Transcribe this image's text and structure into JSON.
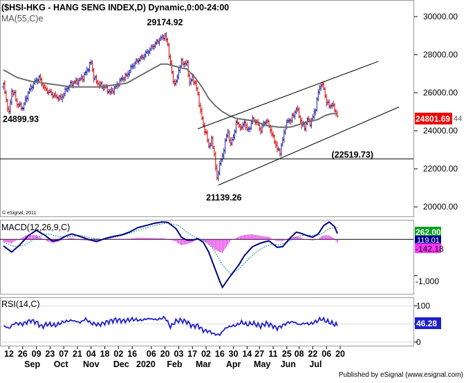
{
  "chart_data": [
    {
      "type": "candlestick",
      "title": "($HSI-HKG - HANG SENG INDEX,D) Dynamic,0:00-24:00",
      "indicator_label": "MA(55,C)e",
      "copyright": "© eSignal, 2011",
      "ylim": [
        19500,
        30800
      ],
      "y_ticks": [
        "30000.00",
        "28000.00",
        "26000.00",
        "24000.00",
        "22000.00",
        "20000.00"
      ],
      "y_tick_values": [
        30000,
        28000,
        26000,
        24000,
        22000,
        20000
      ],
      "last_price_label": "24801.69",
      "last_price_suffix": "44",
      "last_price_value": 24801.69,
      "annotations": [
        {
          "text": "29174.92",
          "value": 29174.92,
          "day": 118
        },
        {
          "text": "24899.93",
          "value": 24899.93,
          "day": 1
        },
        {
          "text": "21139.26",
          "value": 21139.26,
          "day": 156
        },
        {
          "text": "(22519.73)",
          "value": 22519.73,
          "day": 255
        }
      ],
      "horizontal_line": 22519.73,
      "channel_upper": {
        "start": [
          142,
          24100
        ],
        "end": [
          274,
          27650
        ]
      },
      "channel_lower": {
        "start": [
          157,
          21139
        ],
        "end": [
          289,
          25250
        ]
      },
      "price_anchors": [
        [
          0,
          26400
        ],
        [
          2,
          25600
        ],
        [
          4,
          24900
        ],
        [
          6,
          26100
        ],
        [
          8,
          25900
        ],
        [
          10,
          25400
        ],
        [
          14,
          25200
        ],
        [
          18,
          26000
        ],
        [
          22,
          26500
        ],
        [
          26,
          26800
        ],
        [
          30,
          26200
        ],
        [
          34,
          26000
        ],
        [
          38,
          25800
        ],
        [
          42,
          25700
        ],
        [
          46,
          26200
        ],
        [
          50,
          26500
        ],
        [
          54,
          26600
        ],
        [
          58,
          26800
        ],
        [
          62,
          27300
        ],
        [
          64,
          27600
        ],
        [
          66,
          26800
        ],
        [
          70,
          26400
        ],
        [
          74,
          26300
        ],
        [
          78,
          26000
        ],
        [
          82,
          26300
        ],
        [
          86,
          26700
        ],
        [
          90,
          26900
        ],
        [
          94,
          27400
        ],
        [
          98,
          27700
        ],
        [
          102,
          27900
        ],
        [
          106,
          28200
        ],
        [
          110,
          28500
        ],
        [
          114,
          28800
        ],
        [
          118,
          29000
        ],
        [
          120,
          28500
        ],
        [
          122,
          27500
        ],
        [
          124,
          26600
        ],
        [
          126,
          26500
        ],
        [
          128,
          27200
        ],
        [
          130,
          27600
        ],
        [
          134,
          27500
        ],
        [
          136,
          26500
        ],
        [
          138,
          26800
        ],
        [
          140,
          26500
        ],
        [
          142,
          25900
        ],
        [
          144,
          25000
        ],
        [
          146,
          24300
        ],
        [
          148,
          23800
        ],
        [
          150,
          23200
        ],
        [
          152,
          23500
        ],
        [
          154,
          22800
        ],
        [
          156,
          21400
        ],
        [
          158,
          22300
        ],
        [
          160,
          22600
        ],
        [
          162,
          23500
        ],
        [
          164,
          23900
        ],
        [
          166,
          23300
        ],
        [
          168,
          23700
        ],
        [
          170,
          24400
        ],
        [
          172,
          24300
        ],
        [
          174,
          24100
        ],
        [
          176,
          24500
        ],
        [
          178,
          24000
        ],
        [
          180,
          24200
        ],
        [
          182,
          24600
        ],
        [
          184,
          24500
        ],
        [
          186,
          24300
        ],
        [
          188,
          24000
        ],
        [
          190,
          24400
        ],
        [
          192,
          24500
        ],
        [
          194,
          24300
        ],
        [
          196,
          23800
        ],
        [
          198,
          23500
        ],
        [
          200,
          23000
        ],
        [
          202,
          22900
        ],
        [
          204,
          23500
        ],
        [
          206,
          24300
        ],
        [
          208,
          24500
        ],
        [
          210,
          24600
        ],
        [
          212,
          24800
        ],
        [
          214,
          25200
        ],
        [
          216,
          24800
        ],
        [
          218,
          24300
        ],
        [
          220,
          24200
        ],
        [
          222,
          24600
        ],
        [
          224,
          24400
        ],
        [
          226,
          24700
        ],
        [
          228,
          25200
        ],
        [
          230,
          26000
        ],
        [
          232,
          26500
        ],
        [
          234,
          26200
        ],
        [
          236,
          25500
        ],
        [
          238,
          25300
        ],
        [
          240,
          25400
        ],
        [
          242,
          25100
        ],
        [
          244,
          24800
        ]
      ],
      "ma_anchors": [
        [
          0,
          27200
        ],
        [
          10,
          26800
        ],
        [
          20,
          26600
        ],
        [
          30,
          26500
        ],
        [
          40,
          26400
        ],
        [
          50,
          26300
        ],
        [
          60,
          26300
        ],
        [
          70,
          26300
        ],
        [
          80,
          26400
        ],
        [
          90,
          26500
        ],
        [
          100,
          26900
        ],
        [
          110,
          27300
        ],
        [
          115,
          27500
        ],
        [
          120,
          27500
        ],
        [
          125,
          27400
        ],
        [
          130,
          27300
        ],
        [
          134,
          27250
        ],
        [
          140,
          26800
        ],
        [
          145,
          26300
        ],
        [
          150,
          25700
        ],
        [
          155,
          25300
        ],
        [
          160,
          25000
        ],
        [
          165,
          24800
        ],
        [
          170,
          24650
        ],
        [
          175,
          24600
        ],
        [
          180,
          24550
        ],
        [
          185,
          24500
        ],
        [
          190,
          24300
        ],
        [
          195,
          24250
        ],
        [
          200,
          24200
        ],
        [
          205,
          24180
        ],
        [
          210,
          24200
        ],
        [
          215,
          24300
        ],
        [
          220,
          24450
        ],
        [
          225,
          24500
        ],
        [
          230,
          24600
        ],
        [
          235,
          24800
        ],
        [
          240,
          24900
        ],
        [
          244,
          24900
        ]
      ]
    },
    {
      "type": "line",
      "title": "MACD(12,26,9,C)",
      "ylim": [
        -1500,
        500
      ],
      "y_ticks": [
        "-1,000"
      ],
      "y_tick_values": [
        -1000
      ],
      "zero_label_values": [
        262.001,
        119.01
      ],
      "zero_labels": [
        "262.001",
        "119.01"
      ],
      "hist_label": "-142.18",
      "series": [
        {
          "name": "MACD",
          "anchors": [
            [
              0,
              -180
            ],
            [
              6,
              -350
            ],
            [
              12,
              -150
            ],
            [
              18,
              100
            ],
            [
              24,
              250
            ],
            [
              30,
              120
            ],
            [
              36,
              -50
            ],
            [
              40,
              -20
            ],
            [
              46,
              100
            ],
            [
              50,
              150
            ],
            [
              56,
              80
            ],
            [
              62,
              0
            ],
            [
              68,
              -60
            ],
            [
              74,
              20
            ],
            [
              80,
              80
            ],
            [
              86,
              120
            ],
            [
              92,
              200
            ],
            [
              98,
              320
            ],
            [
              104,
              380
            ],
            [
              110,
              440
            ],
            [
              116,
              480
            ],
            [
              120,
              470
            ],
            [
              126,
              300
            ],
            [
              130,
              60
            ],
            [
              134,
              -20
            ],
            [
              138,
              -20
            ],
            [
              142,
              20
            ],
            [
              146,
              -80
            ],
            [
              150,
              -350
            ],
            [
              154,
              -750
            ],
            [
              158,
              -1150
            ],
            [
              160,
              -1320
            ],
            [
              166,
              -1000
            ],
            [
              172,
              -700
            ],
            [
              176,
              -450
            ],
            [
              182,
              -200
            ],
            [
              188,
              -100
            ],
            [
              194,
              -40
            ],
            [
              200,
              -220
            ],
            [
              204,
              -200
            ],
            [
              210,
              60
            ],
            [
              214,
              200
            ],
            [
              218,
              160
            ],
            [
              222,
              100
            ],
            [
              226,
              60
            ],
            [
              230,
              150
            ],
            [
              234,
              380
            ],
            [
              238,
              480
            ],
            [
              242,
              350
            ],
            [
              244,
              160
            ]
          ]
        },
        {
          "name": "Signal",
          "anchors": [
            [
              0,
              -80
            ],
            [
              8,
              -200
            ],
            [
              16,
              -150
            ],
            [
              24,
              50
            ],
            [
              32,
              150
            ],
            [
              40,
              80
            ],
            [
              48,
              70
            ],
            [
              56,
              110
            ],
            [
              64,
              40
            ],
            [
              72,
              0
            ],
            [
              80,
              50
            ],
            [
              88,
              120
            ],
            [
              96,
              220
            ],
            [
              104,
              310
            ],
            [
              112,
              400
            ],
            [
              120,
              450
            ],
            [
              128,
              380
            ],
            [
              134,
              200
            ],
            [
              140,
              60
            ],
            [
              148,
              -60
            ],
            [
              154,
              -300
            ],
            [
              160,
              -700
            ],
            [
              166,
              -950
            ],
            [
              172,
              -820
            ],
            [
              178,
              -580
            ],
            [
              184,
              -370
            ],
            [
              190,
              -220
            ],
            [
              196,
              -130
            ],
            [
              202,
              -150
            ],
            [
              208,
              -70
            ],
            [
              214,
              60
            ],
            [
              220,
              120
            ],
            [
              226,
              110
            ],
            [
              232,
              140
            ],
            [
              238,
              300
            ],
            [
              244,
              320
            ]
          ]
        }
      ]
    },
    {
      "type": "line",
      "title": "RSI(14,C)",
      "ylim": [
        -10,
        120
      ],
      "y_ticks": [
        "100",
        "50",
        "0"
      ],
      "y_tick_values": [
        100,
        50,
        0
      ],
      "last_value_label": "46.28",
      "series": [
        {
          "name": "RSI",
          "anchors": [
            [
              0,
              45
            ],
            [
              4,
              38
            ],
            [
              8,
              52
            ],
            [
              14,
              50
            ],
            [
              20,
              60
            ],
            [
              24,
              55
            ],
            [
              28,
              42
            ],
            [
              32,
              50
            ],
            [
              38,
              46
            ],
            [
              44,
              56
            ],
            [
              50,
              60
            ],
            [
              56,
              54
            ],
            [
              60,
              64
            ],
            [
              64,
              52
            ],
            [
              70,
              48
            ],
            [
              76,
              56
            ],
            [
              82,
              62
            ],
            [
              88,
              58
            ],
            [
              94,
              63
            ],
            [
              100,
              60
            ],
            [
              106,
              65
            ],
            [
              112,
              62
            ],
            [
              118,
              68
            ],
            [
              122,
              42
            ],
            [
              126,
              58
            ],
            [
              130,
              60
            ],
            [
              134,
              56
            ],
            [
              138,
              44
            ],
            [
              142,
              46
            ],
            [
              146,
              32
            ],
            [
              150,
              30
            ],
            [
              154,
              22
            ],
            [
              158,
              20
            ],
            [
              162,
              38
            ],
            [
              166,
              44
            ],
            [
              170,
              46
            ],
            [
              174,
              55
            ],
            [
              178,
              48
            ],
            [
              182,
              52
            ],
            [
              188,
              44
            ],
            [
              192,
              52
            ],
            [
              196,
              46
            ],
            [
              200,
              38
            ],
            [
              204,
              46
            ],
            [
              208,
              54
            ],
            [
              212,
              56
            ],
            [
              216,
              48
            ],
            [
              220,
              52
            ],
            [
              224,
              50
            ],
            [
              228,
              56
            ],
            [
              232,
              64
            ],
            [
              236,
              58
            ],
            [
              240,
              52
            ],
            [
              244,
              46
            ]
          ]
        }
      ]
    }
  ],
  "x_axis": {
    "days": [
      "12",
      "26",
      "09",
      "23",
      "07",
      "21",
      "04",
      "18",
      "02",
      "16",
      "06",
      "20",
      "03",
      "17",
      "02",
      "16",
      "30",
      "14",
      "27",
      "11",
      "25",
      "08",
      "22",
      "06",
      "20"
    ],
    "day_index": [
      0,
      10,
      20,
      30,
      40,
      50,
      60,
      70,
      80,
      90,
      104,
      114,
      124,
      134,
      144,
      154,
      164,
      174,
      183,
      193,
      203,
      212,
      222,
      232,
      242
    ],
    "months": [
      "Sep",
      "Oct",
      "Nov",
      "Dec",
      "2020",
      "Feb",
      "Mar",
      "Apr",
      "May",
      "Jun",
      "Jul"
    ],
    "month_index": [
      17,
      38,
      60,
      82,
      100,
      121,
      142,
      164,
      185,
      204,
      224
    ]
  },
  "footer": "Published by eSignal (www.esignal.com)",
  "colors": {
    "up": "#1a1aa0",
    "down": "#d10000",
    "ma": "#6e6e6e",
    "macd": "#000080",
    "signal": "#0a8a8a",
    "histogram": "#dd00dd",
    "rsi": "#1f1fcf",
    "label_green": "#00a020",
    "label_red": "#ee0000",
    "label_blue": "#00008b",
    "label_magenta": "#ff33ff"
  }
}
